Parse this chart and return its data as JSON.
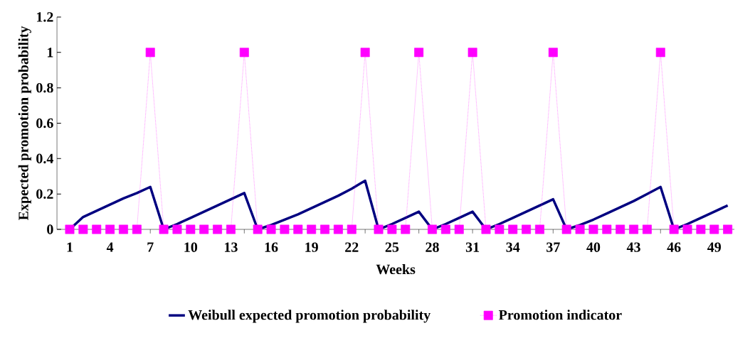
{
  "chart_data": {
    "type": "line",
    "xlabel": "Weeks",
    "ylabel": "Expected promotion probability",
    "categories": [
      "1",
      null,
      null,
      "4",
      null,
      null,
      "7",
      null,
      null,
      "10",
      null,
      null,
      "13",
      null,
      null,
      "16",
      null,
      null,
      "19",
      null,
      null,
      "22",
      null,
      null,
      "25",
      null,
      null,
      "28",
      null,
      null,
      "31",
      null,
      null,
      "34",
      null,
      null,
      "37",
      null,
      null,
      "40",
      null,
      null,
      "43",
      null,
      null,
      "46",
      null,
      null,
      "49",
      null
    ],
    "series": [
      {
        "name": "Weibull expected promotion probability",
        "color": "#000080",
        "line_style": "solid",
        "marker": "none",
        "values": [
          0,
          0.07,
          0.105,
          0.14,
          0.175,
          0.205,
          0.24,
          0,
          0.03,
          0.065,
          0.1,
          0.135,
          0.17,
          0.205,
          0,
          0.025,
          0.055,
          0.085,
          0.12,
          0.155,
          0.19,
          0.23,
          0.275,
          0,
          0.03,
          0.065,
          0.1,
          0,
          0.03,
          0.065,
          0.1,
          0,
          0.03,
          0.065,
          0.1,
          0.135,
          0.17,
          0,
          0.025,
          0.055,
          0.09,
          0.125,
          0.16,
          0.2,
          0.24,
          0,
          0.03,
          0.065,
          0.1,
          0.135
        ]
      },
      {
        "name": "Promotion indicator",
        "color": "#ff00ff",
        "line_style": "dotted",
        "marker": "square",
        "values": [
          0,
          0,
          0,
          0,
          0,
          0,
          1,
          0,
          0,
          0,
          0,
          0,
          0,
          1,
          0,
          0,
          0,
          0,
          0,
          0,
          0,
          0,
          1,
          0,
          0,
          0,
          1,
          0,
          0,
          0,
          1,
          0,
          0,
          0,
          0,
          0,
          1,
          0,
          0,
          0,
          0,
          0,
          0,
          0,
          1,
          0,
          0,
          0,
          0,
          0
        ]
      }
    ],
    "ylim": [
      0,
      1.2
    ],
    "yticks": [
      0,
      0.2,
      0.4,
      0.6,
      0.8,
      1,
      1.2
    ],
    "grid": false,
    "legend": "bottom"
  }
}
